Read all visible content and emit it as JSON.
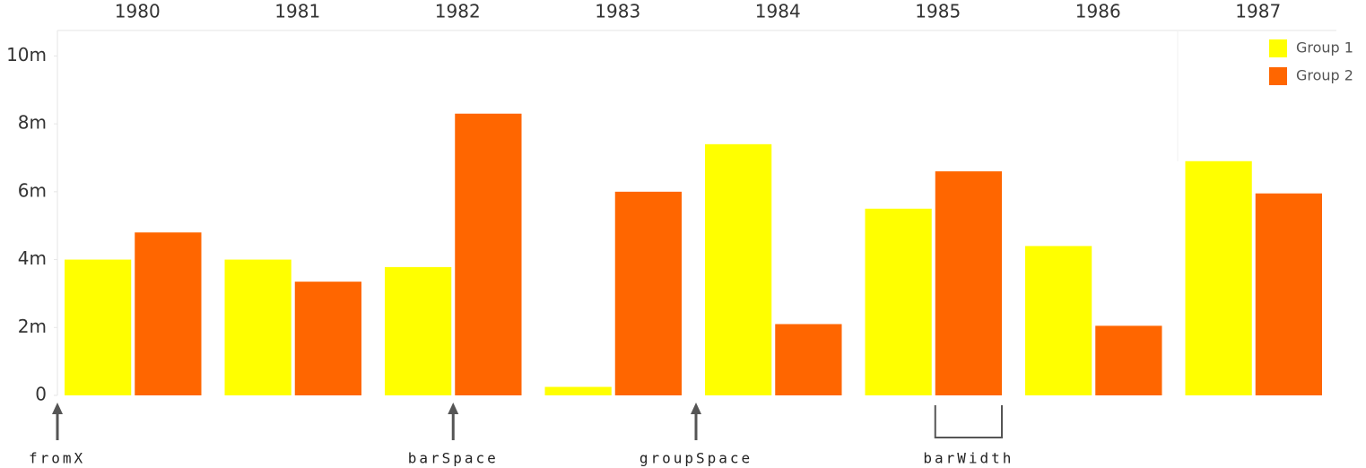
{
  "chart_data": {
    "type": "grouped-bar",
    "categories": [
      "1980",
      "1981",
      "1982",
      "1983",
      "1984",
      "1985",
      "1986",
      "1987"
    ],
    "series": [
      {
        "name": "Group 1",
        "color": "#ffff00",
        "values": [
          4.0,
          4.0,
          3.78,
          0.25,
          7.4,
          5.5,
          4.4,
          6.9
        ]
      },
      {
        "name": "Group 2",
        "color": "#ff6600",
        "values": [
          4.8,
          3.35,
          8.3,
          6.0,
          2.1,
          6.6,
          2.05,
          5.95
        ]
      }
    ],
    "ylim": [
      0,
      10.75
    ],
    "yticks": [
      0,
      {
        "value": 2,
        "label": "2m"
      },
      {
        "value": 4,
        "label": "4m"
      },
      {
        "value": 6,
        "label": "6m"
      },
      {
        "value": 8,
        "label": "8m"
      },
      {
        "value": 10,
        "label": "10m"
      }
    ],
    "grid": false,
    "legend": "top-right",
    "annotations": [
      "fromX",
      "barSpace",
      "groupSpace",
      "barWidth"
    ]
  }
}
